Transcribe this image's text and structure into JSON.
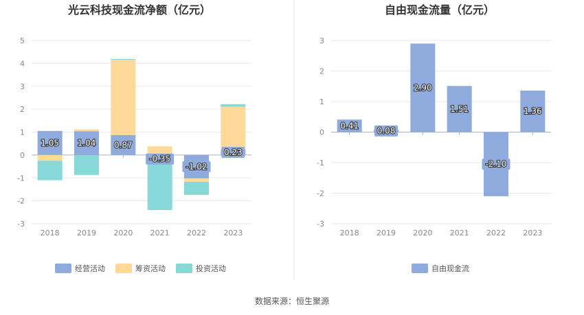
{
  "charts": [
    {
      "chart_data": {
        "type": "bar",
        "stacked": true,
        "title": "光云科技现金流净额（亿元）",
        "categories": [
          "2018",
          "2019",
          "2020",
          "2021",
          "2022",
          "2023"
        ],
        "ylim": [
          -3,
          5
        ],
        "yticks": [
          "-3",
          "-2",
          "-1",
          "0",
          "1",
          "2",
          "3",
          "4",
          "5"
        ],
        "grid": true,
        "legend_position": "bottom",
        "series": [
          {
            "name": "经营活动",
            "color": "#8faadc",
            "values": [
              1.05,
              1.04,
              0.87,
              -0.35,
              -1.02,
              0.23
            ],
            "labels": [
              "1.05",
              "1.04",
              "0.87",
              "-0.35",
              "-1.02",
              "0.23"
            ]
          },
          {
            "name": "筹资活动",
            "color": "#ffd999",
            "values": [
              -0.25,
              0.08,
              3.3,
              0.38,
              -0.15,
              1.88
            ]
          },
          {
            "name": "投资活动",
            "color": "#88d8d8",
            "values": [
              -0.85,
              -0.87,
              0.02,
              -2.05,
              -0.57,
              0.11
            ]
          }
        ]
      }
    },
    {
      "chart_data": {
        "type": "bar",
        "title": "自由现金流量（亿元）",
        "categories": [
          "2018",
          "2019",
          "2020",
          "2021",
          "2022",
          "2023"
        ],
        "ylim": [
          -3,
          3
        ],
        "yticks": [
          "-3",
          "-2",
          "-1",
          "0",
          "1",
          "2",
          "3"
        ],
        "grid": true,
        "legend_position": "bottom",
        "series": [
          {
            "name": "自由现金流",
            "color": "#8faadc",
            "values": [
              0.41,
              0.08,
              2.9,
              1.51,
              -2.1,
              1.36
            ],
            "labels": [
              "0.41",
              "0.08",
              "2.90",
              "1.51",
              "-2.10",
              "1.36"
            ]
          }
        ]
      }
    }
  ],
  "source": "数据来源：恒生聚源"
}
